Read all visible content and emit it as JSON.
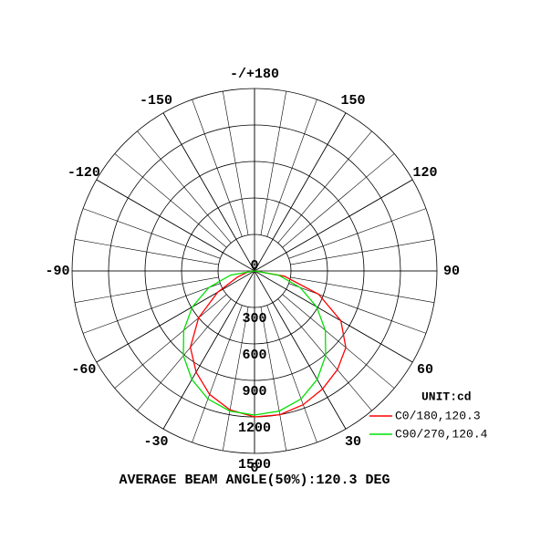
{
  "chart_data": {
    "type": "polar",
    "rlim": [
      0,
      1500
    ],
    "rticks": [
      0,
      300,
      600,
      900,
      1200,
      1500
    ],
    "thetaticks": [
      0,
      30,
      60,
      90,
      120,
      150,
      {
        "value": 180,
        "label": "-/+180"
      },
      -150,
      -120,
      -90,
      -60,
      -30
    ],
    "legend_title": "UNIT:cd",
    "legend_position": "lower right",
    "annotation": "AVERAGE BEAM ANGLE(50%):120.3 DEG",
    "theta": [
      -90,
      -80,
      -70,
      -60,
      -50,
      -40,
      -30,
      -20,
      -10,
      0,
      10,
      20,
      30,
      40,
      50,
      60,
      70,
      80,
      90
    ],
    "series": [
      {
        "name": "C0/180,120.3",
        "color": "#ff0000",
        "values": [
          0,
          60,
          150,
          350,
          600,
          820,
          960,
          1080,
          1160,
          1200,
          1200,
          1170,
          1120,
          1060,
          980,
          820,
          560,
          250,
          0
        ]
      },
      {
        "name": "C90/270,120.4",
        "color": "#00e000",
        "values": [
          0,
          200,
          400,
          590,
          760,
          910,
          1030,
          1120,
          1170,
          1185,
          1170,
          1120,
          1030,
          910,
          760,
          590,
          400,
          200,
          0
        ]
      }
    ]
  }
}
